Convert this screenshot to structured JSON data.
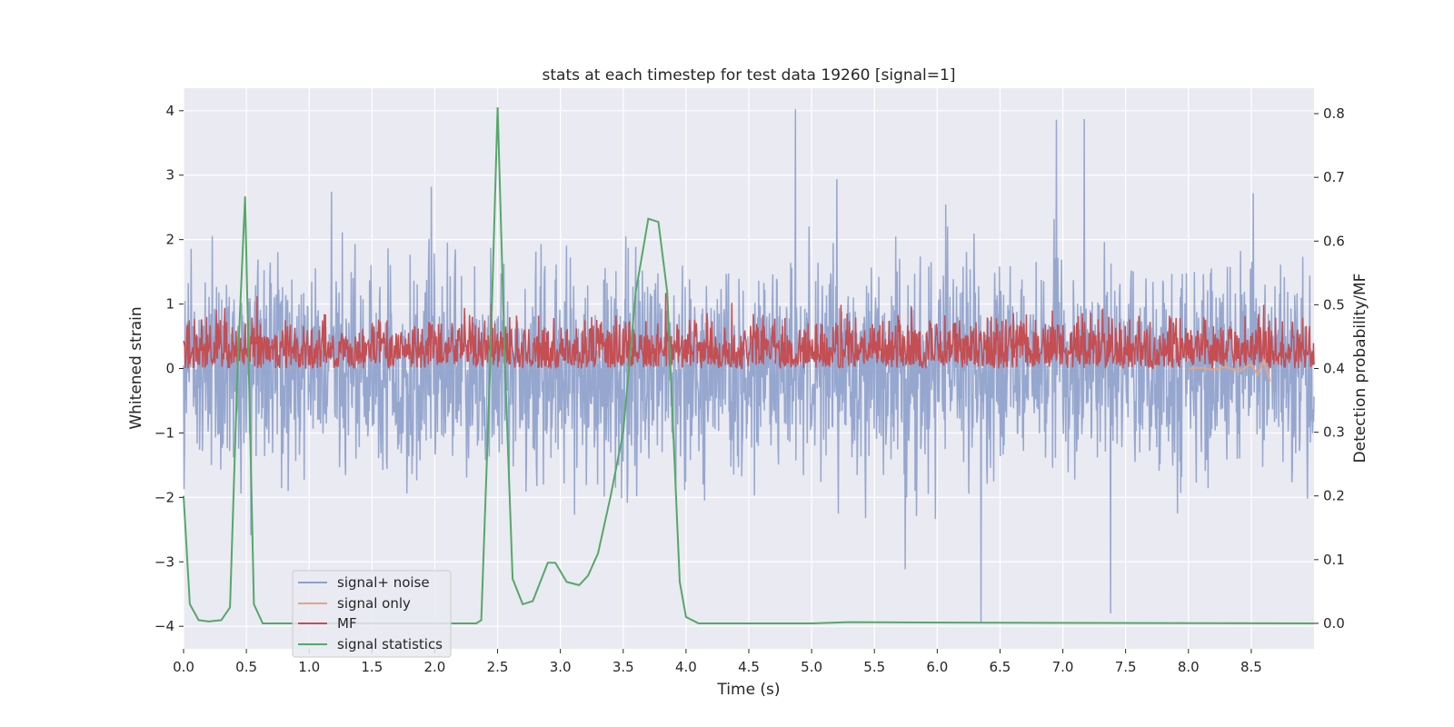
{
  "chart_data": {
    "type": "line",
    "title": "stats at each timestep for test data 19260 [signal=1]",
    "xlabel": "Time (s)",
    "ylabel": "Whitened strain",
    "y2label": "Detection probability/MF",
    "xlim": [
      0.0,
      9.0
    ],
    "ylim": [
      -4.35,
      4.35
    ],
    "y2lim": [
      -0.04,
      0.84
    ],
    "xticks": [
      0.0,
      0.5,
      1.0,
      1.5,
      2.0,
      2.5,
      3.0,
      3.5,
      4.0,
      4.5,
      5.0,
      5.5,
      6.0,
      6.5,
      7.0,
      7.5,
      8.0,
      8.5
    ],
    "xtick_labels": [
      "0.0",
      "0.5",
      "1.0",
      "1.5",
      "2.0",
      "2.5",
      "3.0",
      "3.5",
      "4.0",
      "4.5",
      "5.0",
      "5.5",
      "6.0",
      "6.5",
      "7.0",
      "7.5",
      "8.0",
      "8.5"
    ],
    "yticks": [
      -4,
      -3,
      -2,
      -1,
      0,
      1,
      2,
      3,
      4
    ],
    "ytick_labels": [
      "−4",
      "−3",
      "−2",
      "−1",
      "0",
      "1",
      "2",
      "3",
      "4"
    ],
    "y2ticks": [
      0.0,
      0.1,
      0.2,
      0.3,
      0.4,
      0.5,
      0.6,
      0.7,
      0.8
    ],
    "y2tick_labels": [
      "0.0",
      "0.1",
      "0.2",
      "0.3",
      "0.4",
      "0.5",
      "0.6",
      "0.7",
      "0.8"
    ],
    "grid": true,
    "legend_position": "lower-left",
    "series": [
      {
        "name": "signal+ noise",
        "axis": "left",
        "color": "#8da0cb",
        "style": "dense-noise",
        "description_values": {
          "typical_abs_max": 2.0,
          "peaks": [
            [
              4.87,
              4.02
            ],
            [
              6.95,
              3.86
            ],
            [
              7.17,
              3.87
            ],
            [
              6.35,
              -3.94
            ],
            [
              7.38,
              -3.8
            ]
          ]
        }
      },
      {
        "name": "signal only",
        "axis": "left",
        "color": "#e8a382",
        "x": [
          8.0,
          8.1,
          8.2,
          8.3,
          8.4,
          8.5,
          8.55,
          8.6,
          8.65
        ],
        "y": [
          0.0,
          0.01,
          -0.02,
          0.03,
          -0.05,
          0.07,
          -0.1,
          0.12,
          -0.2
        ]
      },
      {
        "name": "MF",
        "axis": "right",
        "color": "#c44e52",
        "style": "dense-noise",
        "description_values": {
          "baseline": 0.4,
          "typical_max": 0.45,
          "peaks": [
            [
              0.33,
              0.495
            ],
            [
              2.45,
              0.5
            ],
            [
              8.6,
              0.5
            ]
          ]
        }
      },
      {
        "name": "signal statistics",
        "axis": "right",
        "color": "#55a868",
        "x": [
          0.0,
          0.05,
          0.12,
          0.2,
          0.3,
          0.37,
          0.43,
          0.49,
          0.56,
          0.63,
          1.0,
          2.0,
          2.33,
          2.37,
          2.44,
          2.5,
          2.56,
          2.62,
          2.7,
          2.78,
          2.9,
          2.96,
          3.05,
          3.15,
          3.22,
          3.3,
          3.4,
          3.5,
          3.6,
          3.7,
          3.78,
          3.85,
          3.95,
          4.0,
          4.1,
          5.0,
          5.3,
          6.5,
          9.0
        ],
        "y": [
          0.2,
          0.03,
          0.005,
          0.003,
          0.005,
          0.025,
          0.4,
          0.67,
          0.03,
          0.0,
          0.0,
          0.0,
          0.0,
          0.005,
          0.4,
          0.81,
          0.4,
          0.07,
          0.03,
          0.035,
          0.095,
          0.095,
          0.065,
          0.06,
          0.075,
          0.11,
          0.2,
          0.3,
          0.52,
          0.635,
          0.63,
          0.52,
          0.065,
          0.01,
          0.0,
          0.0,
          0.002,
          0.001,
          0.0
        ]
      }
    ]
  }
}
